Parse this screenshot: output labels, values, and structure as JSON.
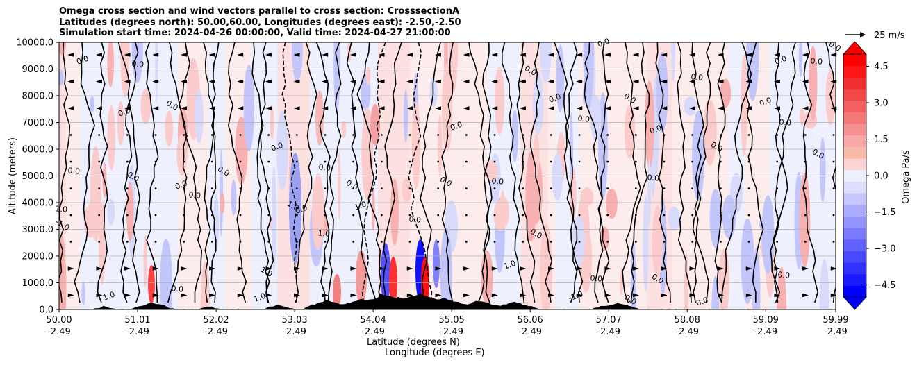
{
  "title": {
    "line1": "Omega cross section and wind vectors parallel to cross section: CrosssectionA",
    "line2": "Latitudes (degrees north): 50.00,60.00, Longitudes (degrees east): -2.50,-2.50",
    "line3": "Simulation start time: 2024-04-26 00:00:00, Valid time: 2024-04-27 21:00:00"
  },
  "chart_data": {
    "type": "heatmap",
    "subtype": "filled contour with wind vectors",
    "ylabel": "Altitude (meters)",
    "xlabel_line1": "Latitude (degrees N)",
    "xlabel_line2": "Longitude (degrees E)",
    "ylim": [
      0,
      10000
    ],
    "xlim_lat": [
      50.0,
      59.99
    ],
    "y_ticks": [
      "0.0",
      "1000.0",
      "2000.0",
      "3000.0",
      "4000.0",
      "5000.0",
      "6000.0",
      "7000.0",
      "8000.0",
      "9000.0",
      "10000.0"
    ],
    "x_ticks": [
      {
        "lat": "50.00",
        "lon": "-2.49"
      },
      {
        "lat": "51.01",
        "lon": "-2.49"
      },
      {
        "lat": "52.02",
        "lon": "-2.49"
      },
      {
        "lat": "53.03",
        "lon": "-2.49"
      },
      {
        "lat": "54.04",
        "lon": "-2.49"
      },
      {
        "lat": "55.05",
        "lon": "-2.49"
      },
      {
        "lat": "56.06",
        "lon": "-2.49"
      },
      {
        "lat": "57.07",
        "lon": "-2.49"
      },
      {
        "lat": "58.08",
        "lon": "-2.49"
      },
      {
        "lat": "59.09",
        "lon": "-2.49"
      },
      {
        "lat": "59.99",
        "lon": "-2.49"
      }
    ],
    "colorbar": {
      "label": "Omega Pa/s",
      "range": [
        -5.0,
        5.0
      ],
      "ticks": [
        "4.5",
        "3.0",
        "1.5",
        "0.0",
        "−1.5",
        "−3.0",
        "−4.5"
      ],
      "colors_low_to_high": [
        "#0000ff",
        "#ff0000"
      ]
    },
    "vector_key": "25 m/s",
    "contour_labels": [
      "0.0",
      "1.0",
      "-1.0"
    ],
    "grid": true
  }
}
